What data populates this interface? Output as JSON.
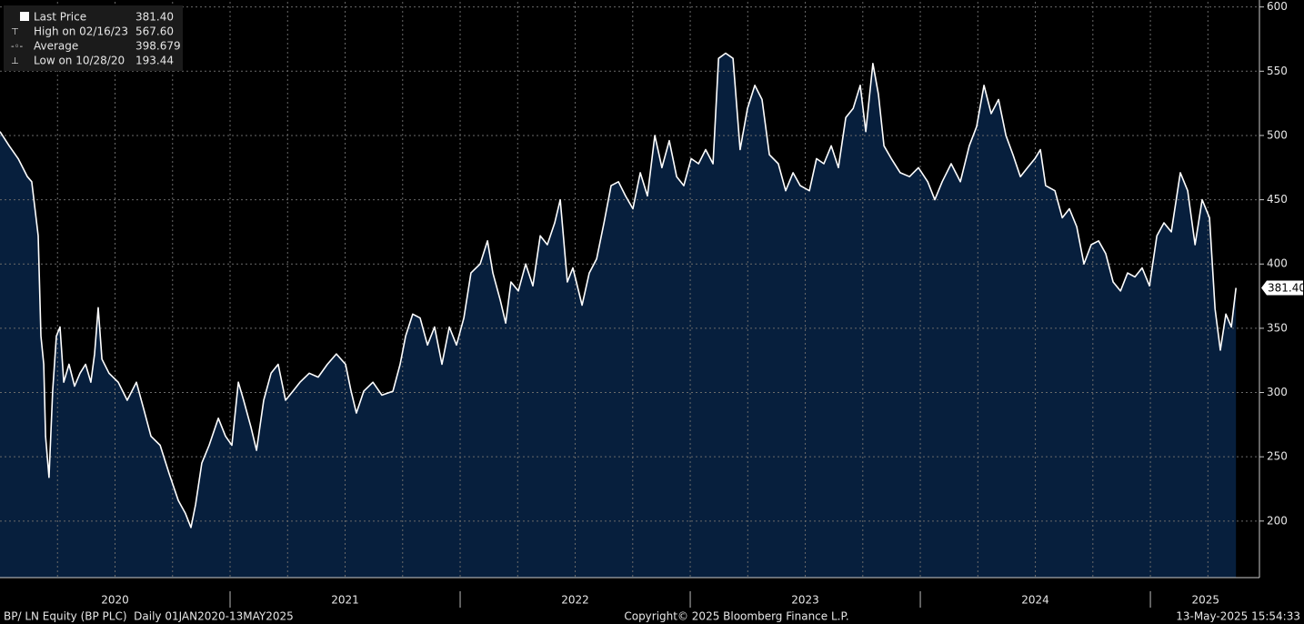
{
  "chart_data": {
    "type": "area",
    "legend": [
      {
        "label": "Last Price",
        "value": "381.40"
      },
      {
        "label": "High on 02/16/23",
        "value": "567.60"
      },
      {
        "label": "Average",
        "value": "398.679"
      },
      {
        "label": "Low on 10/28/20",
        "value": "193.44"
      }
    ],
    "last_price_tag": {
      "value": 381.4,
      "label": "381.40"
    },
    "footer": {
      "left": "BP/ LN Equity (BP PLC)  Daily 01JAN2020-13MAY2025",
      "center": "Copyright© 2025 Bloomberg Finance L.P.",
      "right": "13-May-2025 15:54:33"
    },
    "xlim": [
      2020,
      2025.474
    ],
    "xticks": [
      {
        "value": 2020.5,
        "label": "2020"
      },
      {
        "value": 2021.5,
        "label": "2021"
      },
      {
        "value": 2022.5,
        "label": "2022"
      },
      {
        "value": 2023.5,
        "label": "2023"
      },
      {
        "value": 2024.5,
        "label": "2024"
      },
      {
        "value": 2025.24,
        "label": "2025"
      }
    ],
    "xgrid": [
      2020.25,
      2020.5,
      2020.75,
      2021,
      2021.25,
      2021.5,
      2021.75,
      2022,
      2022.25,
      2022.5,
      2022.75,
      2023,
      2023.25,
      2023.5,
      2023.75,
      2024,
      2024.25,
      2024.5,
      2024.75,
      2025,
      2025.25
    ],
    "ylim": [
      156,
      604
    ],
    "yticks": [
      200,
      250,
      300,
      350,
      400,
      450,
      500,
      550,
      600
    ],
    "grid": true,
    "x": [
      2020.0,
      2020.04,
      2020.079,
      2020.119,
      2020.138,
      2020.166,
      2020.178,
      2020.19,
      2020.198,
      2020.213,
      2020.229,
      2020.245,
      2020.261,
      2020.277,
      2020.3,
      2020.324,
      2020.348,
      2020.372,
      2020.395,
      2020.411,
      2020.427,
      2020.443,
      2020.474,
      2020.514,
      2020.553,
      2020.593,
      2020.625,
      2020.656,
      2020.696,
      2020.735,
      2020.775,
      2020.806,
      2020.83,
      2020.85,
      2020.877,
      2020.909,
      2020.949,
      2020.98,
      2021.008,
      2021.036,
      2021.059,
      2021.091,
      2021.115,
      2021.146,
      2021.178,
      2021.209,
      2021.241,
      2021.273,
      2021.304,
      2021.344,
      2021.383,
      2021.423,
      2021.462,
      2021.502,
      2021.526,
      2021.549,
      2021.581,
      2021.621,
      2021.66,
      2021.708,
      2021.739,
      2021.763,
      2021.794,
      2021.826,
      2021.858,
      2021.889,
      2021.921,
      2021.953,
      2021.984,
      2022.016,
      2022.047,
      2022.087,
      2022.119,
      2022.142,
      2022.174,
      2022.198,
      2022.221,
      2022.253,
      2022.285,
      2022.316,
      2022.348,
      2022.379,
      2022.411,
      2022.435,
      2022.466,
      2022.49,
      2022.53,
      2022.561,
      2022.593,
      2022.625,
      2022.656,
      2022.688,
      2022.719,
      2022.751,
      2022.783,
      2022.814,
      2022.846,
      2022.877,
      2022.909,
      2022.941,
      2022.972,
      2023.004,
      2023.036,
      2023.067,
      2023.099,
      2023.123,
      2023.154,
      2023.186,
      2023.217,
      2023.249,
      2023.281,
      2023.312,
      2023.344,
      2023.383,
      2023.415,
      2023.447,
      2023.478,
      2023.518,
      2023.549,
      2023.581,
      2023.613,
      2023.644,
      2023.676,
      2023.708,
      2023.739,
      2023.763,
      2023.794,
      2023.818,
      2023.842,
      2023.874,
      2023.913,
      2023.953,
      2023.992,
      2024.032,
      2024.063,
      2024.095,
      2024.134,
      2024.174,
      2024.213,
      2024.245,
      2024.277,
      2024.308,
      2024.34,
      2024.372,
      2024.403,
      2024.435,
      2024.466,
      2024.498,
      2024.522,
      2024.545,
      2024.585,
      2024.617,
      2024.648,
      2024.68,
      2024.711,
      2024.743,
      2024.775,
      2024.806,
      2024.838,
      2024.87,
      2024.901,
      2024.933,
      2024.964,
      2024.996,
      2025.028,
      2025.059,
      2025.091,
      2025.13,
      2025.162,
      2025.194,
      2025.225,
      2025.257,
      2025.281,
      2025.304,
      2025.328,
      2025.352,
      2025.372
    ],
    "series": [
      {
        "name": "Last Price",
        "color": "#ffffff",
        "fill": "#071f3d",
        "values": [
          503,
          492,
          482,
          468,
          464,
          422,
          344,
          322,
          266,
          234,
          301,
          344,
          351,
          308,
          322,
          305,
          315,
          322,
          308,
          330,
          366,
          326,
          315,
          308,
          294,
          308,
          287,
          266,
          259,
          237,
          216,
          206,
          195,
          213,
          245,
          259,
          280,
          266,
          259,
          308,
          294,
          273,
          255,
          294,
          315,
          322,
          294,
          301,
          308,
          315,
          312,
          322,
          330,
          322,
          301,
          284,
          301,
          308,
          298,
          301,
          322,
          344,
          361,
          358,
          337,
          351,
          322,
          351,
          337,
          358,
          393,
          400,
          418,
          393,
          372,
          354,
          386,
          379,
          400,
          383,
          422,
          415,
          432,
          450,
          386,
          397,
          368,
          393,
          404,
          432,
          461,
          464,
          453,
          443,
          471,
          453,
          500,
          475,
          496,
          468,
          461,
          482,
          478,
          489,
          478,
          560,
          564,
          560,
          489,
          521,
          539,
          528,
          485,
          478,
          457,
          471,
          461,
          457,
          482,
          478,
          492,
          475,
          514,
          521,
          539,
          503,
          556,
          532,
          492,
          482,
          471,
          468,
          475,
          464,
          450,
          464,
          478,
          464,
          492,
          507,
          539,
          517,
          528,
          500,
          485,
          468,
          475,
          482,
          489,
          461,
          457,
          436,
          443,
          429,
          400,
          415,
          418,
          408,
          386,
          379,
          393,
          390,
          397,
          383,
          422,
          432,
          425,
          471,
          457,
          415,
          450,
          436,
          365,
          333,
          361,
          351,
          381.4
        ]
      }
    ]
  }
}
